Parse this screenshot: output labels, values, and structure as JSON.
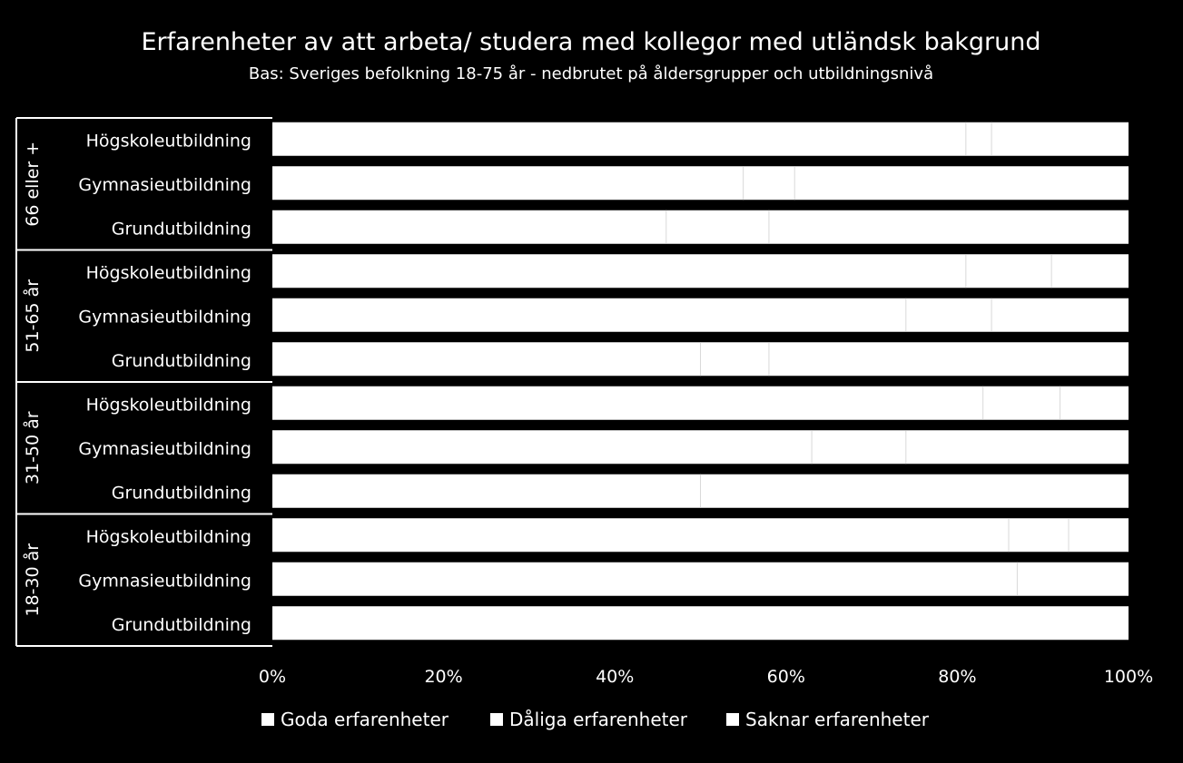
{
  "chart_data": {
    "type": "bar",
    "orientation": "horizontal",
    "stacked": true,
    "percent": true,
    "title": "Erfarenheter av att arbeta/ studera med kollegor med utländsk bakgrund",
    "subtitle": "Bas: Sveriges befolkning 18-75 år - nedbrutet på åldersgrupper och utbildningsnivå",
    "groups": [
      {
        "label": "66 eller +",
        "categories": [
          "Högskoleutbildning",
          "Gymnasieutbildning",
          "Grundutbildning"
        ],
        "series": [
          {
            "name": "Goda erfarenheter",
            "values": [
              81,
              55,
              46
            ]
          },
          {
            "name": "Dåliga erfarenheter",
            "values": [
              3,
              6,
              12
            ]
          },
          {
            "name": "Saknar erfarenheter",
            "values": [
              16,
              39,
              42
            ]
          }
        ]
      },
      {
        "label": "51-65 år",
        "categories": [
          "Högskoleutbildning",
          "Gymnasieutbildning",
          "Grundutbildning"
        ],
        "series": [
          {
            "name": "Goda erfarenheter",
            "values": [
              81,
              74,
              50
            ]
          },
          {
            "name": "Dåliga erfarenheter",
            "values": [
              10,
              10,
              8
            ]
          },
          {
            "name": "Saknar erfarenheter",
            "values": [
              9,
              16,
              42
            ]
          }
        ]
      },
      {
        "label": "31-50 år",
        "categories": [
          "Högskoleutbildning",
          "Gymnasieutbildning",
          "Grundutbildning"
        ],
        "series": [
          {
            "name": "Goda erfarenheter",
            "values": [
              83,
              63,
              50
            ]
          },
          {
            "name": "Dåliga erfarenheter",
            "values": [
              9,
              11,
              0
            ]
          },
          {
            "name": "Saknar erfarenheter",
            "values": [
              8,
              26,
              50
            ]
          }
        ]
      },
      {
        "label": "18-30 år",
        "categories": [
          "Högskoleutbildning",
          "Gymnasieutbildning",
          "Grundutbildning"
        ],
        "series": [
          {
            "name": "Goda erfarenheter",
            "values": [
              86,
              87,
              100
            ]
          },
          {
            "name": "Dåliga erfarenheter",
            "values": [
              7,
              0,
              0
            ]
          },
          {
            "name": "Saknar erfarenheter",
            "values": [
              7,
              13,
              0
            ]
          }
        ]
      }
    ],
    "xlim": [
      0,
      100
    ],
    "x_ticks": [
      "0%",
      "20%",
      "40%",
      "60%",
      "80%",
      "100%"
    ],
    "legend": {
      "position": "bottom",
      "items": [
        "Goda erfarenheter",
        "Dåliga erfarenheter",
        "Saknar erfarenheter"
      ]
    },
    "grid": true,
    "colors": {
      "background": "#000000",
      "bar": "#ffffff",
      "segment_divider": "#d9d9d9",
      "text": "#ffffff"
    }
  }
}
